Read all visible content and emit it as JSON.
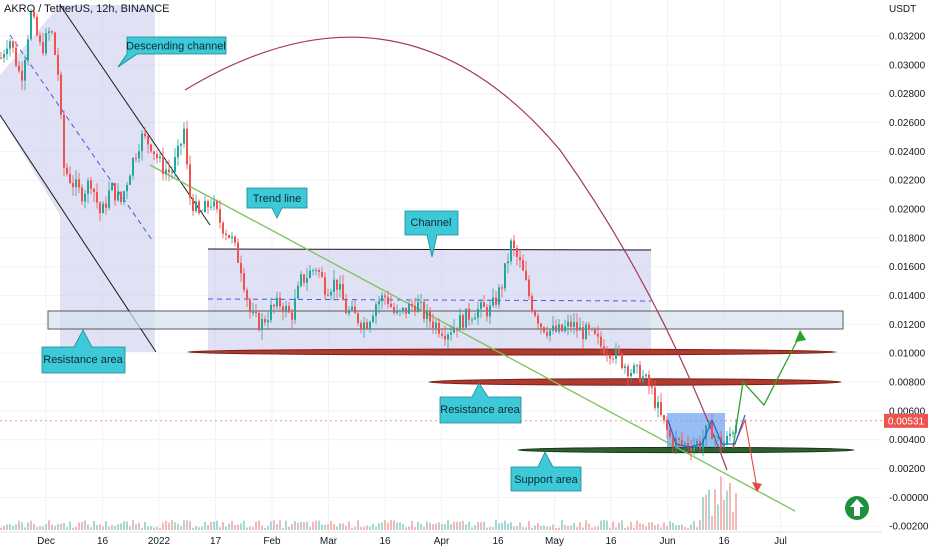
{
  "chart_data": {
    "type": "candlestick",
    "title": "AKRO / TetherUS, 12h, BINANCE",
    "currency": "USDT",
    "last_price_label": "0.00531",
    "x_ticks": [
      "Dec",
      "16",
      "2022",
      "17",
      "Feb",
      "Mar",
      "16",
      "Apr",
      "16",
      "May",
      "16",
      "Jun",
      "16",
      "Jul"
    ],
    "y_ticks": [
      "0.03200",
      "0.03000",
      "0.02800",
      "0.02600",
      "0.02400",
      "0.02200",
      "0.02000",
      "0.01800",
      "0.01600",
      "0.01400",
      "0.01200",
      "0.01000",
      "0.00800",
      "0.00600",
      "0.00400",
      "0.00200",
      "-0.00000",
      "-0.00200"
    ],
    "ylim": [
      -0.0024,
      0.0345
    ],
    "price_path": [
      [
        0,
        0.0305
      ],
      [
        8,
        0.032
      ],
      [
        20,
        0.029
      ],
      [
        30,
        0.0335
      ],
      [
        40,
        0.031
      ],
      [
        50,
        0.0325
      ],
      [
        58,
        0.029
      ],
      [
        62,
        0.023
      ],
      [
        70,
        0.022
      ],
      [
        80,
        0.021
      ],
      [
        90,
        0.022
      ],
      [
        100,
        0.0195
      ],
      [
        110,
        0.0215
      ],
      [
        120,
        0.0205
      ],
      [
        130,
        0.023
      ],
      [
        140,
        0.025
      ],
      [
        150,
        0.0245
      ],
      [
        160,
        0.023
      ],
      [
        170,
        0.0225
      ],
      [
        178,
        0.024
      ],
      [
        183,
        0.0255
      ],
      [
        188,
        0.021
      ],
      [
        198,
        0.0195
      ],
      [
        210,
        0.0205
      ],
      [
        220,
        0.019
      ],
      [
        230,
        0.018
      ],
      [
        240,
        0.016
      ],
      [
        250,
        0.0125
      ],
      [
        260,
        0.012
      ],
      [
        270,
        0.013
      ],
      [
        280,
        0.0135
      ],
      [
        290,
        0.0125
      ],
      [
        300,
        0.015
      ],
      [
        315,
        0.016
      ],
      [
        325,
        0.0145
      ],
      [
        335,
        0.015
      ],
      [
        345,
        0.013
      ],
      [
        355,
        0.0125
      ],
      [
        365,
        0.012
      ],
      [
        375,
        0.0135
      ],
      [
        385,
        0.014
      ],
      [
        395,
        0.0125
      ],
      [
        405,
        0.013
      ],
      [
        415,
        0.0135
      ],
      [
        425,
        0.0125
      ],
      [
        435,
        0.012
      ],
      [
        445,
        0.0115
      ],
      [
        455,
        0.012
      ],
      [
        465,
        0.0125
      ],
      [
        475,
        0.013
      ],
      [
        490,
        0.013
      ],
      [
        500,
        0.0145
      ],
      [
        510,
        0.0175
      ],
      [
        520,
        0.016
      ],
      [
        530,
        0.0135
      ],
      [
        540,
        0.012
      ],
      [
        550,
        0.0115
      ],
      [
        560,
        0.0115
      ],
      [
        570,
        0.012
      ],
      [
        580,
        0.0115
      ],
      [
        590,
        0.0113
      ],
      [
        600,
        0.0105
      ],
      [
        610,
        0.0102
      ],
      [
        620,
        0.0095
      ],
      [
        630,
        0.0088
      ],
      [
        640,
        0.0085
      ],
      [
        650,
        0.0075
      ],
      [
        660,
        0.0055
      ],
      [
        670,
        0.004
      ],
      [
        680,
        0.0037
      ],
      [
        690,
        0.0037
      ],
      [
        700,
        0.0038
      ],
      [
        705,
        0.0045
      ],
      [
        710,
        0.0048
      ],
      [
        715,
        0.004
      ],
      [
        720,
        0.0037
      ],
      [
        725,
        0.0038
      ],
      [
        730,
        0.0045
      ],
      [
        735,
        0.0053
      ]
    ],
    "annotations": [
      {
        "text": "Descending channel"
      },
      {
        "text": "Trend line"
      },
      {
        "text": "Channel"
      },
      {
        "text": "Resistance area"
      },
      {
        "text": "Resistance area"
      },
      {
        "text": "Support area"
      }
    ],
    "levels": {
      "resistance_box": [
        0.0115,
        0.0126
      ],
      "red_line_1": 0.0099,
      "red_line_2": 0.0077,
      "support_line": 0.0031,
      "channel_top": 0.0168,
      "channel_mid": 0.0134,
      "channel_bottom": 0.01
    },
    "colors": {
      "up": "#26a69a",
      "down": "#ef5350",
      "channel_fill": "#c9c9ee",
      "trend_line": "#7cc35a",
      "arc": "#a33a55",
      "callout": "#3ec9d9",
      "projection_up": "#2ca02c",
      "projection_down": "#e24a4a",
      "support_fill": "#2e5f2e",
      "badge": "#1e8f3a",
      "price_tag": "#ef5350"
    }
  }
}
